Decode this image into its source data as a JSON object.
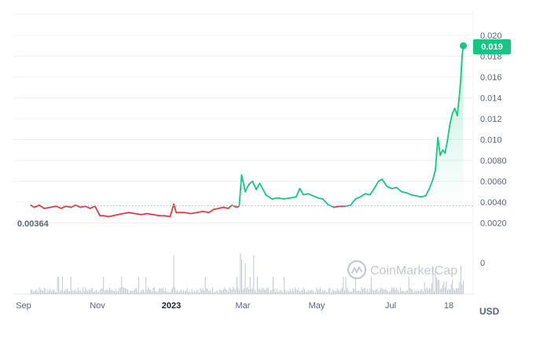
{
  "chart_data": {
    "type": "line",
    "currency": "USD",
    "watermark": "CoinMarketCap",
    "current_price_label": "0.019",
    "reference_label": "0.00364",
    "reference_value": 0.00364,
    "ylim": [
      0,
      0.02
    ],
    "y_ticks": [
      {
        "value": 0.02,
        "label": "0.020"
      },
      {
        "value": 0.018,
        "label": "0.018"
      },
      {
        "value": 0.016,
        "label": "0.016"
      },
      {
        "value": 0.014,
        "label": "0.014"
      },
      {
        "value": 0.012,
        "label": "0.012"
      },
      {
        "value": 0.01,
        "label": "0.010"
      },
      {
        "value": 0.008,
        "label": "0.0080"
      },
      {
        "value": 0.006,
        "label": "0.0060"
      },
      {
        "value": 0.004,
        "label": "0.0040"
      },
      {
        "value": 0.002,
        "label": "0.0020"
      }
    ],
    "volume_tick_label": "0",
    "x_ticks": [
      {
        "date": "2022-09-01",
        "label": "Sep",
        "bold": false
      },
      {
        "date": "2022-11-01",
        "label": "Nov",
        "bold": false
      },
      {
        "date": "2023-01-01",
        "label": "2023",
        "bold": true
      },
      {
        "date": "2023-03-01",
        "label": "Mar",
        "bold": false
      },
      {
        "date": "2023-05-01",
        "label": "May",
        "bold": false
      },
      {
        "date": "2023-07-01",
        "label": "Jul",
        "bold": false
      },
      {
        "date": "2023-08-18",
        "label": "18",
        "bold": false
      }
    ],
    "x_range": [
      "2022-09-01",
      "2023-08-30"
    ],
    "colors": {
      "up": "#16c784",
      "down": "#ea3943",
      "badge": "#16c784",
      "grid": "#eff2f5",
      "volume": "#c3c8d1"
    },
    "series": [
      {
        "x": [
          "2022-09-07",
          "2022-09-10",
          "2022-09-14",
          "2022-09-18",
          "2022-09-23",
          "2022-09-28",
          "2022-10-02",
          "2022-10-06",
          "2022-10-10",
          "2022-10-14",
          "2022-10-18",
          "2022-10-22",
          "2022-10-26",
          "2022-10-30",
          "2022-11-03",
          "2022-11-06",
          "2022-11-10",
          "2022-11-14",
          "2022-11-18",
          "2022-11-22",
          "2022-11-27",
          "2022-12-02",
          "2022-12-07",
          "2022-12-12",
          "2022-12-17",
          "2022-12-22",
          "2022-12-26",
          "2022-12-31",
          "2023-01-03",
          "2023-01-05",
          "2023-01-07",
          "2023-01-12",
          "2023-01-17",
          "2023-01-22",
          "2023-01-27",
          "2023-02-01",
          "2023-02-05",
          "2023-02-09",
          "2023-02-13",
          "2023-02-17",
          "2023-02-20",
          "2023-02-22",
          "2023-02-24",
          "2023-02-26",
          "2023-02-28",
          "2023-03-03",
          "2023-03-06",
          "2023-03-09",
          "2023-03-12",
          "2023-03-15",
          "2023-03-20",
          "2023-03-25",
          "2023-03-30",
          "2023-04-04",
          "2023-04-09",
          "2023-04-14",
          "2023-04-17",
          "2023-04-20",
          "2023-04-24",
          "2023-04-28",
          "2023-05-02",
          "2023-05-06",
          "2023-05-10",
          "2023-05-15",
          "2023-05-20",
          "2023-05-25",
          "2023-05-29",
          "2023-06-02",
          "2023-06-06",
          "2023-06-10",
          "2023-06-14",
          "2023-06-18",
          "2023-06-21",
          "2023-06-24",
          "2023-06-28",
          "2023-07-02",
          "2023-07-06",
          "2023-07-10",
          "2023-07-14",
          "2023-07-18",
          "2023-07-22",
          "2023-07-26",
          "2023-07-30",
          "2023-08-02",
          "2023-08-05",
          "2023-08-07",
          "2023-08-09",
          "2023-08-11",
          "2023-08-13",
          "2023-08-15",
          "2023-08-17",
          "2023-08-19",
          "2023-08-21",
          "2023-08-23",
          "2023-08-25",
          "2023-08-27",
          "2023-08-28",
          "2023-08-29",
          "2023-08-30"
        ],
        "y": [
          0.0037,
          0.0035,
          0.0037,
          0.0034,
          0.0035,
          0.0036,
          0.0034,
          0.0036,
          0.0035,
          0.0037,
          0.0035,
          0.0036,
          0.0034,
          0.0036,
          0.0027,
          0.0027,
          0.0026,
          0.0027,
          0.0028,
          0.0029,
          0.003,
          0.0029,
          0.0028,
          0.0029,
          0.0028,
          0.0027,
          0.0027,
          0.0026,
          0.0038,
          0.003,
          0.003,
          0.003,
          0.0029,
          0.003,
          0.0031,
          0.003,
          0.0033,
          0.0034,
          0.0035,
          0.0034,
          0.0037,
          0.0036,
          0.0035,
          0.0036,
          0.0066,
          0.005,
          0.0057,
          0.006,
          0.0052,
          0.0058,
          0.0047,
          0.0043,
          0.0044,
          0.0043,
          0.0044,
          0.0045,
          0.0053,
          0.0047,
          0.0048,
          0.0046,
          0.0044,
          0.0043,
          0.0038,
          0.0035,
          0.0036,
          0.0036,
          0.0037,
          0.0043,
          0.0045,
          0.0048,
          0.0047,
          0.0054,
          0.006,
          0.0062,
          0.0055,
          0.0053,
          0.0054,
          0.005,
          0.0049,
          0.0047,
          0.0046,
          0.0045,
          0.0046,
          0.0053,
          0.0062,
          0.0071,
          0.0102,
          0.0085,
          0.009,
          0.0087,
          0.01,
          0.0115,
          0.0125,
          0.013,
          0.0123,
          0.0145,
          0.016,
          0.018,
          0.019
        ]
      }
    ],
    "volume_spikes": [
      {
        "date": "2023-01-03",
        "rel": 0.95
      },
      {
        "date": "2023-02-27",
        "rel": 1.0
      },
      {
        "date": "2023-02-28",
        "rel": 0.85
      },
      {
        "date": "2023-03-03",
        "rel": 0.75
      },
      {
        "date": "2023-03-10",
        "rel": 0.95
      },
      {
        "date": "2023-08-07",
        "rel": 0.6
      },
      {
        "date": "2023-08-28",
        "rel": 0.7
      }
    ]
  }
}
